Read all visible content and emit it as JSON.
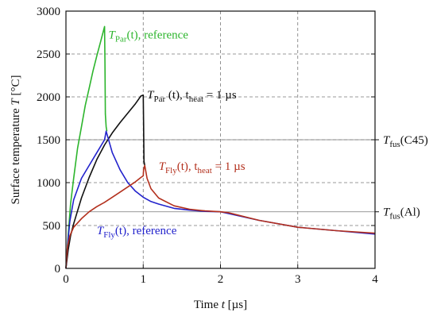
{
  "chart_data": {
    "type": "line",
    "xlabel_prefix": "Time ",
    "xlabel_var": "t",
    "xlabel_suffix": " [µs]",
    "ylabel_prefix": "Surface temperature ",
    "ylabel_var": "T",
    "ylabel_suffix": " [°C]",
    "xlim": [
      0,
      4
    ],
    "ylim": [
      0,
      3000
    ],
    "xticks": [
      0,
      1,
      2,
      3,
      4
    ],
    "yticks": [
      0,
      500,
      1000,
      1500,
      2000,
      2500,
      3000
    ],
    "grid": true,
    "series": [
      {
        "key": "tpar_ref",
        "color": "#2db52d",
        "x": [
          0,
          0.03,
          0.06,
          0.1,
          0.15,
          0.2,
          0.25,
          0.3,
          0.35,
          0.4,
          0.45,
          0.5,
          0.505,
          0.51,
          0.52,
          0.53
        ],
        "y": [
          0,
          400,
          750,
          1050,
          1400,
          1650,
          1900,
          2100,
          2300,
          2480,
          2650,
          2820,
          2400,
          1800,
          1650,
          1600
        ]
      },
      {
        "key": "tpar_heat",
        "color": "#111111",
        "x": [
          0,
          0.03,
          0.06,
          0.1,
          0.2,
          0.3,
          0.4,
          0.5,
          0.6,
          0.7,
          0.8,
          0.9,
          0.97,
          1.0,
          1.005,
          1.01,
          1.02
        ],
        "y": [
          0,
          220,
          380,
          520,
          820,
          1060,
          1270,
          1440,
          1580,
          1700,
          1810,
          1920,
          2010,
          2020,
          1700,
          1250,
          1200
        ]
      },
      {
        "key": "tfly_ref",
        "color": "#2222cc",
        "x": [
          0,
          0.02,
          0.05,
          0.1,
          0.2,
          0.3,
          0.4,
          0.5,
          0.52,
          0.6,
          0.7,
          0.8,
          0.9,
          1.0,
          1.1,
          1.2,
          1.4,
          1.6,
          1.8,
          2.0,
          2.1,
          2.5,
          3.0,
          3.5,
          4.0
        ],
        "y": [
          0,
          250,
          550,
          800,
          1050,
          1200,
          1350,
          1500,
          1600,
          1350,
          1150,
          1000,
          900,
          830,
          780,
          750,
          700,
          680,
          665,
          660,
          640,
          560,
          480,
          440,
          400
        ]
      },
      {
        "key": "tfly_heat",
        "color": "#b3301d",
        "x": [
          0,
          0.02,
          0.05,
          0.1,
          0.2,
          0.3,
          0.4,
          0.5,
          0.6,
          0.7,
          0.8,
          0.9,
          0.97,
          1.0,
          1.005,
          1.02,
          1.05,
          1.1,
          1.2,
          1.4,
          1.6,
          1.8,
          2.0,
          2.1,
          2.5,
          3.0,
          3.5,
          4.0
        ],
        "y": [
          0,
          250,
          380,
          480,
          580,
          660,
          720,
          770,
          830,
          890,
          950,
          1010,
          1060,
          1080,
          1150,
          1200,
          1050,
          930,
          820,
          730,
          690,
          670,
          660,
          650,
          560,
          480,
          440,
          410
        ]
      }
    ],
    "annotations": [
      {
        "key": "tpar_ref",
        "main": "T",
        "sub": "Par",
        "rest": "(t), reference",
        "x": 0.55,
        "y": 2680,
        "color": "#2db52d"
      },
      {
        "key": "tpar_heat",
        "main": "T",
        "sub": "Par",
        "rest1": " (t), t",
        "sub2": "heat",
        "rest2": " = 1 µs",
        "x": 1.05,
        "y": 1980,
        "color": "#111111"
      },
      {
        "key": "tfly_heat",
        "main": "T",
        "sub": "Fly",
        "rest1": "(t), t",
        "sub2": "heat",
        "rest2": " = 1 µs",
        "x": 1.2,
        "y": 1150,
        "color": "#b3301d"
      },
      {
        "key": "tfly_ref",
        "main": "T",
        "sub": "Fly",
        "rest": "(t), reference",
        "x": 0.4,
        "y": 400,
        "color": "#2222cc"
      }
    ],
    "reference_lines": [
      {
        "key": "fus_c45",
        "y": 1500,
        "main": "T",
        "sub": "fus",
        "rest": "(C45)"
      },
      {
        "key": "fus_al",
        "y": 660,
        "main": "T",
        "sub": "fus",
        "rest": "(Al)"
      }
    ]
  }
}
